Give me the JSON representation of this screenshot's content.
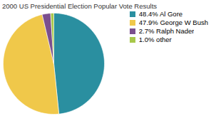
{
  "chart_data": {
    "type": "pie",
    "title": "2000 US Presidential Election Popular Vote Results",
    "categories": [
      "48.4% Al Gore",
      "47.9% George W Bush",
      "2.7% Ralph Nader",
      "1.0% other"
    ],
    "values": [
      48.4,
      47.9,
      2.7,
      1.0
    ],
    "colors": [
      "#2a8fa0",
      "#f0c84a",
      "#7b4f8e",
      "#a8c84a"
    ],
    "legend": "upper right"
  }
}
